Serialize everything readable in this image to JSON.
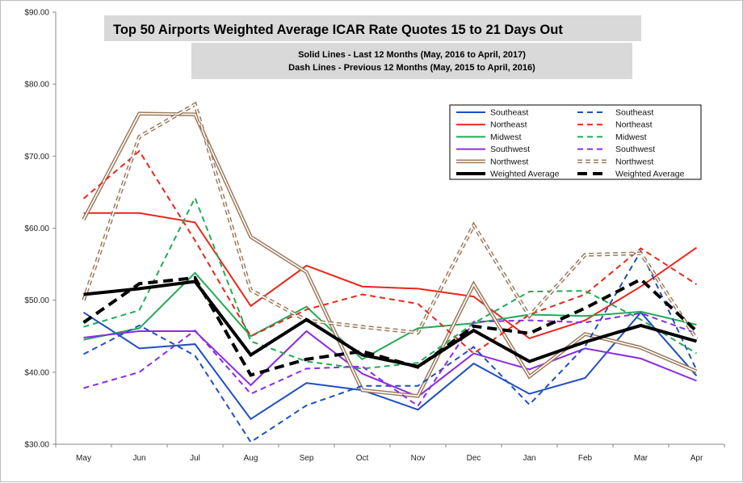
{
  "chart_data": {
    "type": "line",
    "title": "Top 50 Airports Weighted Average ICAR Rate Quotes 15 to 21 Days Out",
    "subtitle_lines": [
      "Solid Lines - Last 12 Months  (May, 2016 to April, 2017)",
      "Dash Lines - Previous 12 Months  (May, 2015 to April, 2016)"
    ],
    "categories": [
      "May",
      "Jun",
      "Jul",
      "Aug",
      "Sep",
      "Oct",
      "Nov",
      "Dec",
      "Jan",
      "Feb",
      "Mar",
      "Apr"
    ],
    "y_ticks": [
      "$30.00",
      "$40.00",
      "$50.00",
      "$60.00",
      "$70.00",
      "$80.00",
      "$90.00"
    ],
    "ylim": [
      30,
      90
    ],
    "grid": false,
    "legend_position": "top-right",
    "series": [
      {
        "name": "Southeast",
        "style": "solid",
        "color": "#1f4fbf",
        "width": 2,
        "values": [
          48.3,
          43.3,
          43.9,
          33.5,
          38.5,
          37.5,
          34.8,
          41.2,
          37.0,
          39.2,
          48.3,
          39.5
        ]
      },
      {
        "name": "Northeast",
        "style": "solid",
        "color": "#e8261b",
        "width": 2,
        "values": [
          62.1,
          62.1,
          60.8,
          49.2,
          54.8,
          51.9,
          51.6,
          50.5,
          44.7,
          47.2,
          51.9,
          57.3
        ]
      },
      {
        "name": "Midwest",
        "style": "solid",
        "color": "#22aa55",
        "width": 2,
        "values": [
          44.5,
          46.1,
          53.8,
          45.0,
          49.1,
          41.8,
          46.1,
          46.8,
          48.0,
          47.8,
          48.4,
          46.6
        ]
      },
      {
        "name": "Southwest",
        "style": "solid",
        "color": "#8a2be2",
        "width": 2,
        "values": [
          44.8,
          45.7,
          45.7,
          38.2,
          45.7,
          39.8,
          36.6,
          42.6,
          40.4,
          43.3,
          41.9,
          38.8
        ]
      },
      {
        "name": "Northwest",
        "style": "double",
        "color": "#9c7a5c",
        "width": 1.4,
        "values": [
          61.2,
          75.9,
          75.8,
          58.8,
          53.9,
          37.5,
          36.7,
          52.2,
          39.4,
          45.3,
          43.4,
          40.1
        ]
      },
      {
        "name": "Weighted Average",
        "style": "solid",
        "color": "#000000",
        "width": 4,
        "values": [
          50.8,
          51.6,
          52.6,
          42.4,
          47.3,
          42.4,
          40.8,
          45.8,
          41.5,
          44.2,
          46.5,
          44.3
        ]
      },
      {
        "name": "Southeast",
        "style": "dash",
        "color": "#1f4fbf",
        "width": 2,
        "values": [
          42.5,
          46.5,
          42.3,
          30.3,
          35.4,
          38.1,
          38.1,
          43.5,
          35.5,
          43.6,
          56.8,
          40.3
        ]
      },
      {
        "name": "Northeast",
        "style": "dash",
        "color": "#e8261b",
        "width": 2,
        "values": [
          64.1,
          70.7,
          58.3,
          45.0,
          48.7,
          50.8,
          49.5,
          42.6,
          48.0,
          50.8,
          57.2,
          52.2
        ]
      },
      {
        "name": "Midwest",
        "style": "dash",
        "color": "#22aa55",
        "width": 2,
        "values": [
          46.3,
          48.6,
          64.2,
          44.3,
          41.5,
          40.5,
          41.3,
          46.8,
          51.2,
          51.3,
          47.3,
          42.6
        ]
      },
      {
        "name": "Southwest",
        "style": "dash",
        "color": "#8a2be2",
        "width": 2,
        "values": [
          37.8,
          40.0,
          45.8,
          37.0,
          40.5,
          40.8,
          35.3,
          47.0,
          47.2,
          46.9,
          48.2,
          45.4
        ]
      },
      {
        "name": "Northwest",
        "style": "ddash",
        "color": "#9c7a5c",
        "width": 1.4,
        "values": [
          50.0,
          72.7,
          77.2,
          51.4,
          47.2,
          46.3,
          45.5,
          60.4,
          47.8,
          56.3,
          56.5,
          44.6
        ]
      },
      {
        "name": "Weighted Average",
        "style": "dash",
        "color": "#000000",
        "width": 4,
        "values": [
          46.9,
          52.3,
          53.1,
          39.6,
          41.8,
          42.9,
          40.7,
          46.4,
          45.4,
          48.9,
          52.9,
          45.7
        ]
      }
    ]
  }
}
